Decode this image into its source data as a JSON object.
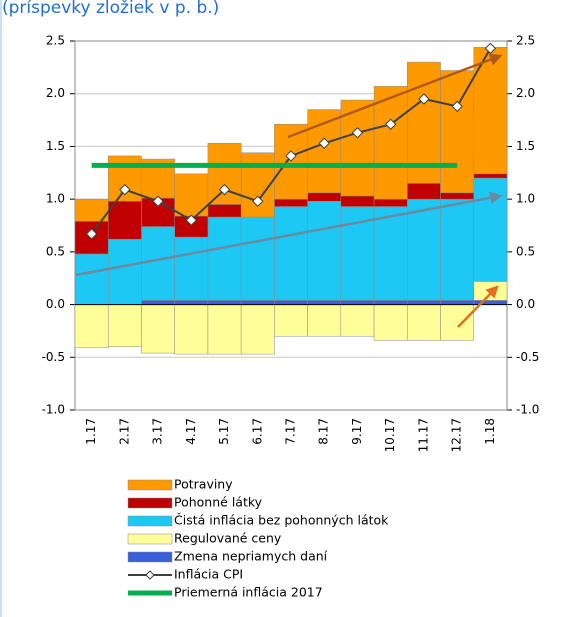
{
  "chart_data": {
    "type": "bar",
    "subtitle": "(príspevky zložiek v p. b.)",
    "categories": [
      "1.17",
      "2.17",
      "3.17",
      "4.17",
      "5.17",
      "6.17",
      "7.17",
      "8.17",
      "9.17",
      "10.17",
      "11.17",
      "12.17",
      "1.18"
    ],
    "series": [
      {
        "name": "Potraviny",
        "type": "bar",
        "color": "#ff9900",
        "values": [
          0.21,
          0.43,
          0.37,
          0.4,
          0.58,
          0.61,
          0.71,
          0.79,
          0.91,
          1.07,
          1.15,
          1.16,
          1.2
        ]
      },
      {
        "name": "Pohonné látky",
        "type": "bar",
        "color": "#c00000",
        "values": [
          0.31,
          0.36,
          0.27,
          0.2,
          0.12,
          0,
          0.07,
          0.08,
          0.1,
          0.07,
          0.15,
          0.06,
          0.04
        ]
      },
      {
        "name": "Čistá inflácia bez pohonných látok",
        "type": "bar",
        "color": "#1ec8f5",
        "values": [
          0.48,
          0.62,
          0.7,
          0.6,
          0.79,
          0.79,
          0.89,
          0.94,
          0.89,
          0.89,
          0.96,
          0.96,
          0.98
        ]
      },
      {
        "name": "Regulované ceny",
        "type": "bar",
        "color": "#ffff99",
        "values": [
          -0.41,
          -0.4,
          -0.46,
          -0.47,
          -0.47,
          -0.47,
          -0.3,
          -0.3,
          -0.3,
          -0.34,
          -0.34,
          -0.34,
          0.18
        ]
      },
      {
        "name": "Zmena nepriamych daní",
        "type": "bar",
        "color": "#3a5fd6",
        "values": [
          0,
          0,
          0.04,
          0.04,
          0.04,
          0.04,
          0.04,
          0.04,
          0.04,
          0.04,
          0.04,
          0.04,
          0.04
        ]
      },
      {
        "name": "Inflácia CPI",
        "type": "line",
        "color": "#404040",
        "values": [
          0.67,
          1.09,
          0.98,
          0.8,
          1.09,
          0.98,
          1.41,
          1.53,
          1.63,
          1.71,
          1.95,
          1.88,
          2.43
        ]
      },
      {
        "name": "Priemerná inflácia 2017",
        "type": "line",
        "color": "#00b050",
        "values": [
          1.32,
          1.32,
          1.32,
          1.32,
          1.32,
          1.32,
          1.32,
          1.32,
          1.32,
          1.32,
          1.32,
          1.32,
          null
        ]
      }
    ],
    "ylim": [
      -1.0,
      2.5
    ],
    "yticks": [
      2.5,
      {
        "value": 2,
        "label": "2.0"
      },
      1.5,
      {
        "value": 1,
        "label": "1.0"
      },
      0.5,
      {
        "value": 0,
        "label": "0.0"
      },
      -0.5,
      {
        "value": -1,
        "label": "-1.0"
      }
    ],
    "y2lim": [
      -1.0,
      2.5
    ],
    "y2ticks": [
      2.5,
      {
        "value": 2,
        "label": "2.0"
      },
      1.5,
      {
        "value": 1,
        "label": "1.0"
      },
      0.5,
      {
        "value": 0,
        "label": "0.0"
      },
      -0.5,
      {
        "value": -1,
        "label": "-1.0"
      }
    ],
    "grid": true
  }
}
